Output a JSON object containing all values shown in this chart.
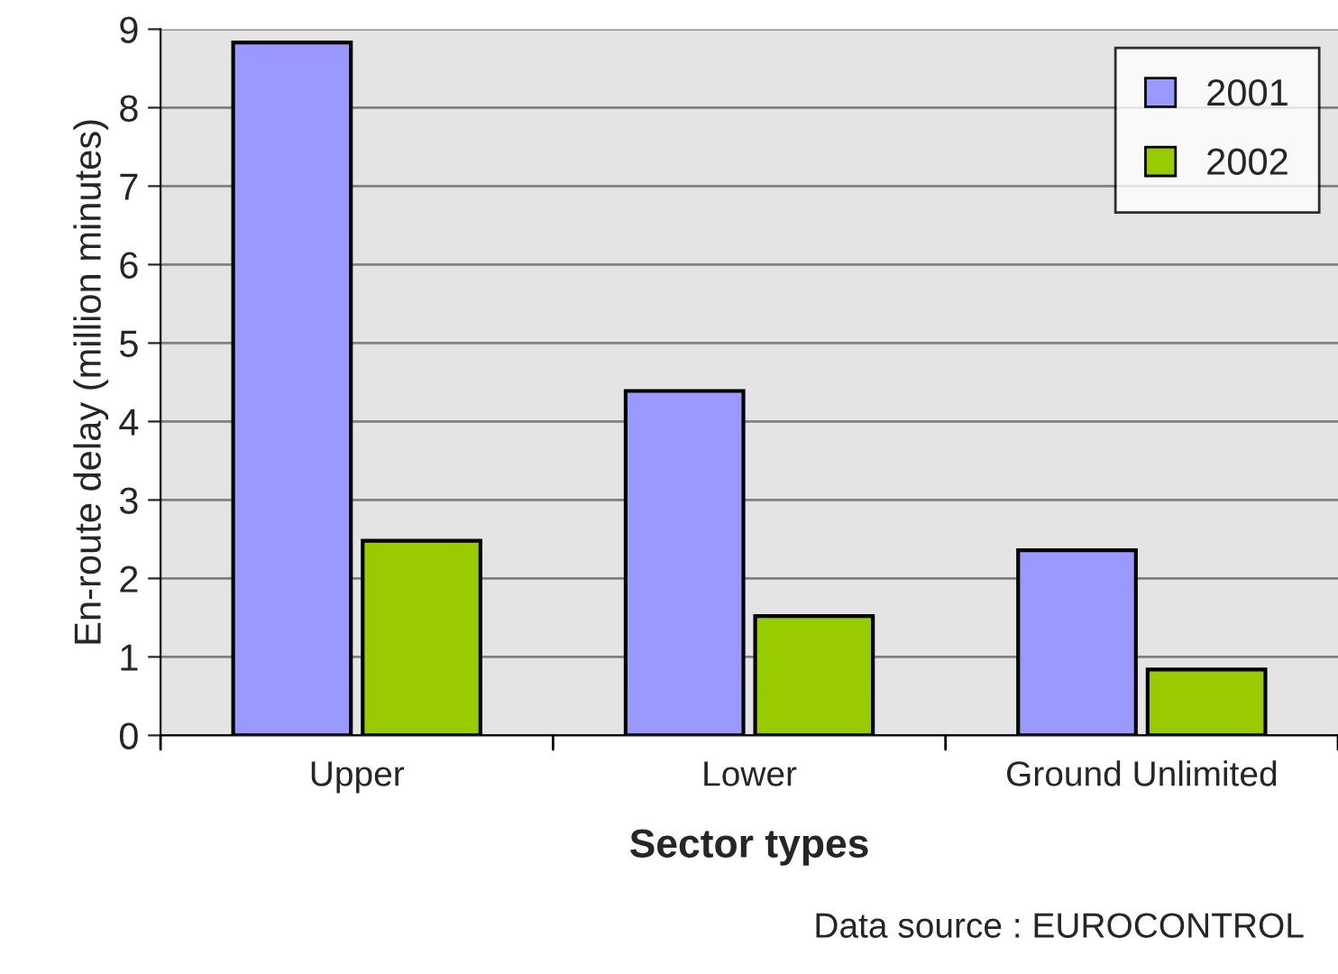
{
  "chart_data": {
    "type": "bar",
    "xlabel": "Sector types",
    "ylabel": "En-route delay (million minutes)",
    "categories": [
      "Upper",
      "Lower",
      "Ground Unlimited"
    ],
    "series": [
      {
        "name": "2001",
        "color": "#9999ff",
        "values": [
          8.83,
          4.39,
          2.36
        ]
      },
      {
        "name": "2002",
        "color": "#99cc00",
        "values": [
          2.48,
          1.52,
          0.84
        ]
      }
    ],
    "ylim": [
      0,
      9
    ],
    "yticks": [
      0,
      1,
      2,
      3,
      4,
      5,
      6,
      7,
      8,
      9
    ],
    "grid": "y",
    "legend": "top right",
    "annotations": [
      "Data source : EUROCONTROL"
    ]
  }
}
